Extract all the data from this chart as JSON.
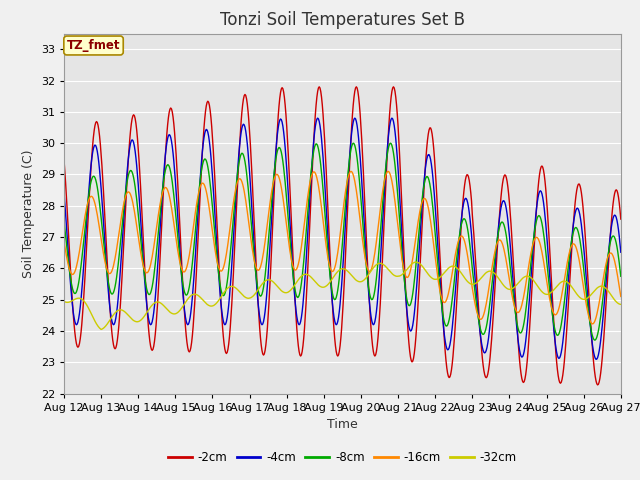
{
  "title": "Tonzi Soil Temperatures Set B",
  "xlabel": "Time",
  "ylabel": "Soil Temperature (C)",
  "label_box": "TZ_fmet",
  "ylim": [
    22.0,
    33.5
  ],
  "yticks": [
    22.0,
    23.0,
    24.0,
    25.0,
    26.0,
    27.0,
    28.0,
    29.0,
    30.0,
    31.0,
    32.0,
    33.0
  ],
  "xtick_labels": [
    "Aug 12",
    "Aug 13",
    "Aug 14",
    "Aug 15",
    "Aug 16",
    "Aug 17",
    "Aug 18",
    "Aug 19",
    "Aug 20",
    "Aug 21",
    "Aug 22",
    "Aug 23",
    "Aug 24",
    "Aug 25",
    "Aug 26",
    "Aug 27"
  ],
  "series_colors": [
    "#cc0000",
    "#0000cc",
    "#00aa00",
    "#ff8800",
    "#cccc00"
  ],
  "series_labels": [
    "-2cm",
    "-4cm",
    "-8cm",
    "-16cm",
    "-32cm"
  ],
  "plot_bg_color": "#e5e5e5",
  "fig_bg_color": "#f0f0f0",
  "grid_color": "#ffffff",
  "title_fontsize": 12,
  "axis_label_fontsize": 9,
  "tick_fontsize": 8
}
